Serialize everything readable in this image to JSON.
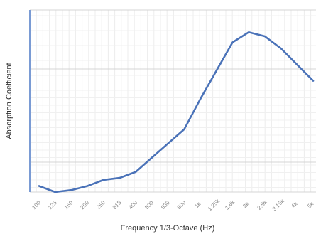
{
  "chart_data": {
    "type": "line",
    "title": "",
    "xlabel": "Frequency 1/3-Octave (Hz)",
    "ylabel": "Absorption Coefficient",
    "x_tick_labels": [
      "100",
      "125",
      "160",
      "200",
      "250",
      "315",
      "400",
      "500",
      "630",
      "800",
      "1k",
      "1.25k",
      "1.6k",
      "2k",
      "2.5k",
      "3.15k",
      "4k",
      "5k"
    ],
    "x": [
      "100",
      "125",
      "160",
      "200",
      "250",
      "315",
      "400",
      "500",
      "630",
      "800",
      "1k",
      "1.25k",
      "1.6k",
      "2k",
      "2.5k",
      "3.15k",
      "4k",
      "5k"
    ],
    "series": [
      {
        "values": [
          0.03,
          0.0,
          0.01,
          0.03,
          0.06,
          0.07,
          0.1,
          0.17,
          0.24,
          0.31,
          0.46,
          0.6,
          0.74,
          0.79,
          0.77,
          0.71,
          0.63,
          0.55
        ]
      }
    ],
    "ylim": [
      0,
      0.9
    ],
    "grid": true,
    "color": "#4a72b8"
  }
}
